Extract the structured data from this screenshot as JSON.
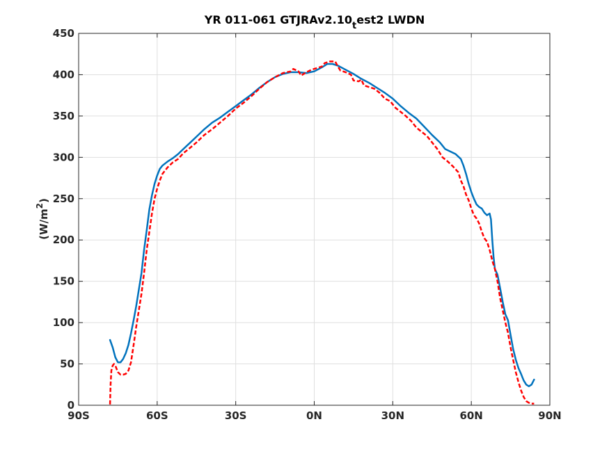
{
  "chart_data": {
    "type": "line",
    "title": {
      "before": "YR 011-061 GTJRAv2.10",
      "subscript": "t",
      "after": "est2 LWDN"
    },
    "ylabel": {
      "before": "(W/m",
      "superscript": "2",
      "after": ")"
    },
    "xlabel": "",
    "xlim": [
      -90,
      90
    ],
    "ylim": [
      0,
      450
    ],
    "grid": true,
    "x_ticks": [
      {
        "value": -90,
        "label": "90S"
      },
      {
        "value": -60,
        "label": "60S"
      },
      {
        "value": -30,
        "label": "30S"
      },
      {
        "value": 0,
        "label": "0N"
      },
      {
        "value": 30,
        "label": "30N"
      },
      {
        "value": 60,
        "label": "60N"
      },
      {
        "value": 90,
        "label": "90N"
      }
    ],
    "y_ticks": [
      {
        "value": 0,
        "label": "0"
      },
      {
        "value": 50,
        "label": "50"
      },
      {
        "value": 100,
        "label": "100"
      },
      {
        "value": 150,
        "label": "150"
      },
      {
        "value": 200,
        "label": "200"
      },
      {
        "value": 250,
        "label": "250"
      },
      {
        "value": 300,
        "label": "300"
      },
      {
        "value": 350,
        "label": "350"
      },
      {
        "value": 400,
        "label": "400"
      },
      {
        "value": 450,
        "label": "450"
      }
    ],
    "series": [
      {
        "color": "#0072BD",
        "style": "solid",
        "points": [
          [
            -78,
            79
          ],
          [
            -77,
            70
          ],
          [
            -76,
            58
          ],
          [
            -75,
            52
          ],
          [
            -74,
            52
          ],
          [
            -73,
            56
          ],
          [
            -72,
            63
          ],
          [
            -71,
            73
          ],
          [
            -70,
            87
          ],
          [
            -69,
            103
          ],
          [
            -68,
            120
          ],
          [
            -67,
            140
          ],
          [
            -66,
            160
          ],
          [
            -65,
            188
          ],
          [
            -64,
            212
          ],
          [
            -63,
            237
          ],
          [
            -62,
            254
          ],
          [
            -61,
            268
          ],
          [
            -60,
            278
          ],
          [
            -59,
            286
          ],
          [
            -58,
            290
          ],
          [
            -56,
            295
          ],
          [
            -54,
            299
          ],
          [
            -52,
            304
          ],
          [
            -50,
            310
          ],
          [
            -48,
            316
          ],
          [
            -45,
            325
          ],
          [
            -42,
            334
          ],
          [
            -39,
            342
          ],
          [
            -36,
            348
          ],
          [
            -33,
            355
          ],
          [
            -30,
            362
          ],
          [
            -27,
            369
          ],
          [
            -24,
            376
          ],
          [
            -21,
            384
          ],
          [
            -18,
            391
          ],
          [
            -15,
            397
          ],
          [
            -12,
            401
          ],
          [
            -9,
            403
          ],
          [
            -6,
            403
          ],
          [
            -3,
            402
          ],
          [
            0,
            404
          ],
          [
            3,
            409
          ],
          [
            5,
            413
          ],
          [
            7,
            413
          ],
          [
            9,
            411
          ],
          [
            12,
            406
          ],
          [
            15,
            401
          ],
          [
            18,
            395
          ],
          [
            21,
            390
          ],
          [
            24,
            384
          ],
          [
            27,
            378
          ],
          [
            30,
            371
          ],
          [
            33,
            362
          ],
          [
            36,
            354
          ],
          [
            39,
            347
          ],
          [
            42,
            337
          ],
          [
            45,
            327
          ],
          [
            48,
            318
          ],
          [
            50,
            310
          ],
          [
            52,
            307
          ],
          [
            54,
            304
          ],
          [
            56,
            298
          ],
          [
            57,
            290
          ],
          [
            58,
            280
          ],
          [
            59,
            268
          ],
          [
            60,
            258
          ],
          [
            61,
            250
          ],
          [
            62,
            243
          ],
          [
            63,
            240
          ],
          [
            64,
            238
          ],
          [
            65,
            233
          ],
          [
            66,
            230
          ],
          [
            67,
            232
          ],
          [
            67.5,
            225
          ],
          [
            68,
            200
          ],
          [
            68.5,
            180
          ],
          [
            69,
            165
          ],
          [
            70,
            158
          ],
          [
            71,
            142
          ],
          [
            72,
            125
          ],
          [
            73,
            110
          ],
          [
            74,
            103
          ],
          [
            75,
            85
          ],
          [
            76,
            68
          ],
          [
            77,
            55
          ],
          [
            78,
            45
          ],
          [
            79,
            38
          ],
          [
            80,
            30
          ],
          [
            81,
            25
          ],
          [
            82,
            23
          ],
          [
            83,
            25
          ],
          [
            84,
            31
          ]
        ]
      },
      {
        "color": "#FF0000",
        "style": "dashed",
        "points": [
          [
            -78,
            1
          ],
          [
            -77.8,
            25
          ],
          [
            -77.5,
            42
          ],
          [
            -77,
            48
          ],
          [
            -76.5,
            50
          ],
          [
            -76,
            48
          ],
          [
            -75,
            40
          ],
          [
            -74,
            37
          ],
          [
            -73,
            37
          ],
          [
            -72,
            38
          ],
          [
            -71,
            42
          ],
          [
            -70,
            52
          ],
          [
            -69,
            73
          ],
          [
            -68,
            95
          ],
          [
            -67,
            115
          ],
          [
            -66,
            135
          ],
          [
            -65,
            160
          ],
          [
            -64,
            188
          ],
          [
            -63,
            210
          ],
          [
            -62,
            232
          ],
          [
            -61,
            250
          ],
          [
            -60,
            262
          ],
          [
            -59,
            272
          ],
          [
            -58,
            280
          ],
          [
            -56,
            288
          ],
          [
            -54,
            294
          ],
          [
            -52,
            298
          ],
          [
            -50,
            305
          ],
          [
            -48,
            310
          ],
          [
            -45,
            318
          ],
          [
            -42,
            327
          ],
          [
            -39,
            334
          ],
          [
            -36,
            342
          ],
          [
            -33,
            350
          ],
          [
            -30,
            359
          ],
          [
            -27,
            366
          ],
          [
            -24,
            374
          ],
          [
            -21,
            383
          ],
          [
            -18,
            391
          ],
          [
            -15,
            397
          ],
          [
            -12,
            402
          ],
          [
            -9,
            404
          ],
          [
            -8,
            407
          ],
          [
            -6,
            404
          ],
          [
            -5,
            399
          ],
          [
            -3,
            403
          ],
          [
            -1,
            406
          ],
          [
            1,
            408
          ],
          [
            3,
            410
          ],
          [
            4,
            414
          ],
          [
            6,
            416
          ],
          [
            8,
            416
          ],
          [
            9,
            410
          ],
          [
            10,
            405
          ],
          [
            12,
            403
          ],
          [
            14,
            400
          ],
          [
            15,
            393
          ],
          [
            17,
            392
          ],
          [
            18,
            394
          ],
          [
            19,
            387
          ],
          [
            21,
            385
          ],
          [
            23,
            383
          ],
          [
            25,
            378
          ],
          [
            27,
            371
          ],
          [
            29,
            368
          ],
          [
            31,
            360
          ],
          [
            33,
            355
          ],
          [
            35,
            350
          ],
          [
            37,
            344
          ],
          [
            39,
            336
          ],
          [
            41,
            331
          ],
          [
            43,
            326
          ],
          [
            45,
            318
          ],
          [
            47,
            310
          ],
          [
            49,
            300
          ],
          [
            51,
            295
          ],
          [
            53,
            289
          ],
          [
            55,
            282
          ],
          [
            56,
            272
          ],
          [
            57,
            265
          ],
          [
            58,
            255
          ],
          [
            59,
            248
          ],
          [
            60,
            238
          ],
          [
            61,
            230
          ],
          [
            62,
            226
          ],
          [
            63,
            220
          ],
          [
            64,
            210
          ],
          [
            65,
            202
          ],
          [
            66,
            198
          ],
          [
            67,
            188
          ],
          [
            68,
            175
          ],
          [
            69,
            165
          ],
          [
            70,
            150
          ],
          [
            71,
            130
          ],
          [
            72,
            115
          ],
          [
            73,
            100
          ],
          [
            74,
            88
          ],
          [
            75,
            70
          ],
          [
            76,
            55
          ],
          [
            77,
            40
          ],
          [
            78,
            28
          ],
          [
            79,
            18
          ],
          [
            80,
            10
          ],
          [
            81,
            5
          ],
          [
            82,
            3
          ],
          [
            83,
            2
          ],
          [
            84,
            2
          ]
        ]
      }
    ]
  }
}
